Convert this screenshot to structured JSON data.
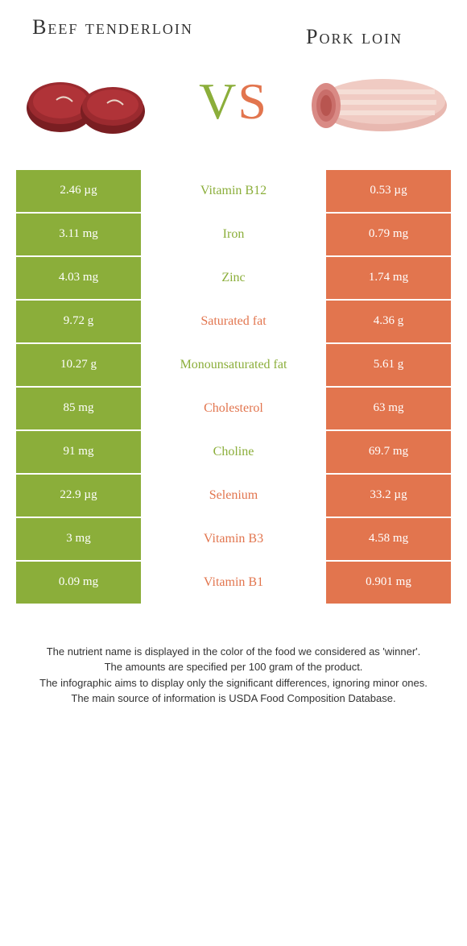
{
  "left_food": "Beef tenderloin",
  "right_food": "Pork loin",
  "vs": {
    "v": "V",
    "s": "S"
  },
  "colors": {
    "green": "#8bae3a",
    "orange": "#e2754e"
  },
  "rows": [
    {
      "left": "2.46 µg",
      "nutrient": "Vitamin B12",
      "right": "0.53 µg",
      "winner": "left"
    },
    {
      "left": "3.11 mg",
      "nutrient": "Iron",
      "right": "0.79 mg",
      "winner": "left"
    },
    {
      "left": "4.03 mg",
      "nutrient": "Zinc",
      "right": "1.74 mg",
      "winner": "left"
    },
    {
      "left": "9.72 g",
      "nutrient": "Saturated fat",
      "right": "4.36 g",
      "winner": "right"
    },
    {
      "left": "10.27 g",
      "nutrient": "Monounsaturated fat",
      "right": "5.61 g",
      "winner": "left"
    },
    {
      "left": "85 mg",
      "nutrient": "Cholesterol",
      "right": "63 mg",
      "winner": "right"
    },
    {
      "left": "91 mg",
      "nutrient": "Choline",
      "right": "69.7 mg",
      "winner": "left"
    },
    {
      "left": "22.9 µg",
      "nutrient": "Selenium",
      "right": "33.2 µg",
      "winner": "right"
    },
    {
      "left": "3 mg",
      "nutrient": "Vitamin B3",
      "right": "4.58 mg",
      "winner": "right"
    },
    {
      "left": "0.09 mg",
      "nutrient": "Vitamin B1",
      "right": "0.901 mg",
      "winner": "right"
    }
  ],
  "footer": {
    "l1": "The nutrient name is displayed in the color of the food we considered as 'winner'.",
    "l2": "The amounts are specified per 100 gram of the product.",
    "l3": "The infographic aims to display only the significant differences, ignoring minor ones.",
    "l4": "The main source of information is USDA Food Composition Database."
  }
}
